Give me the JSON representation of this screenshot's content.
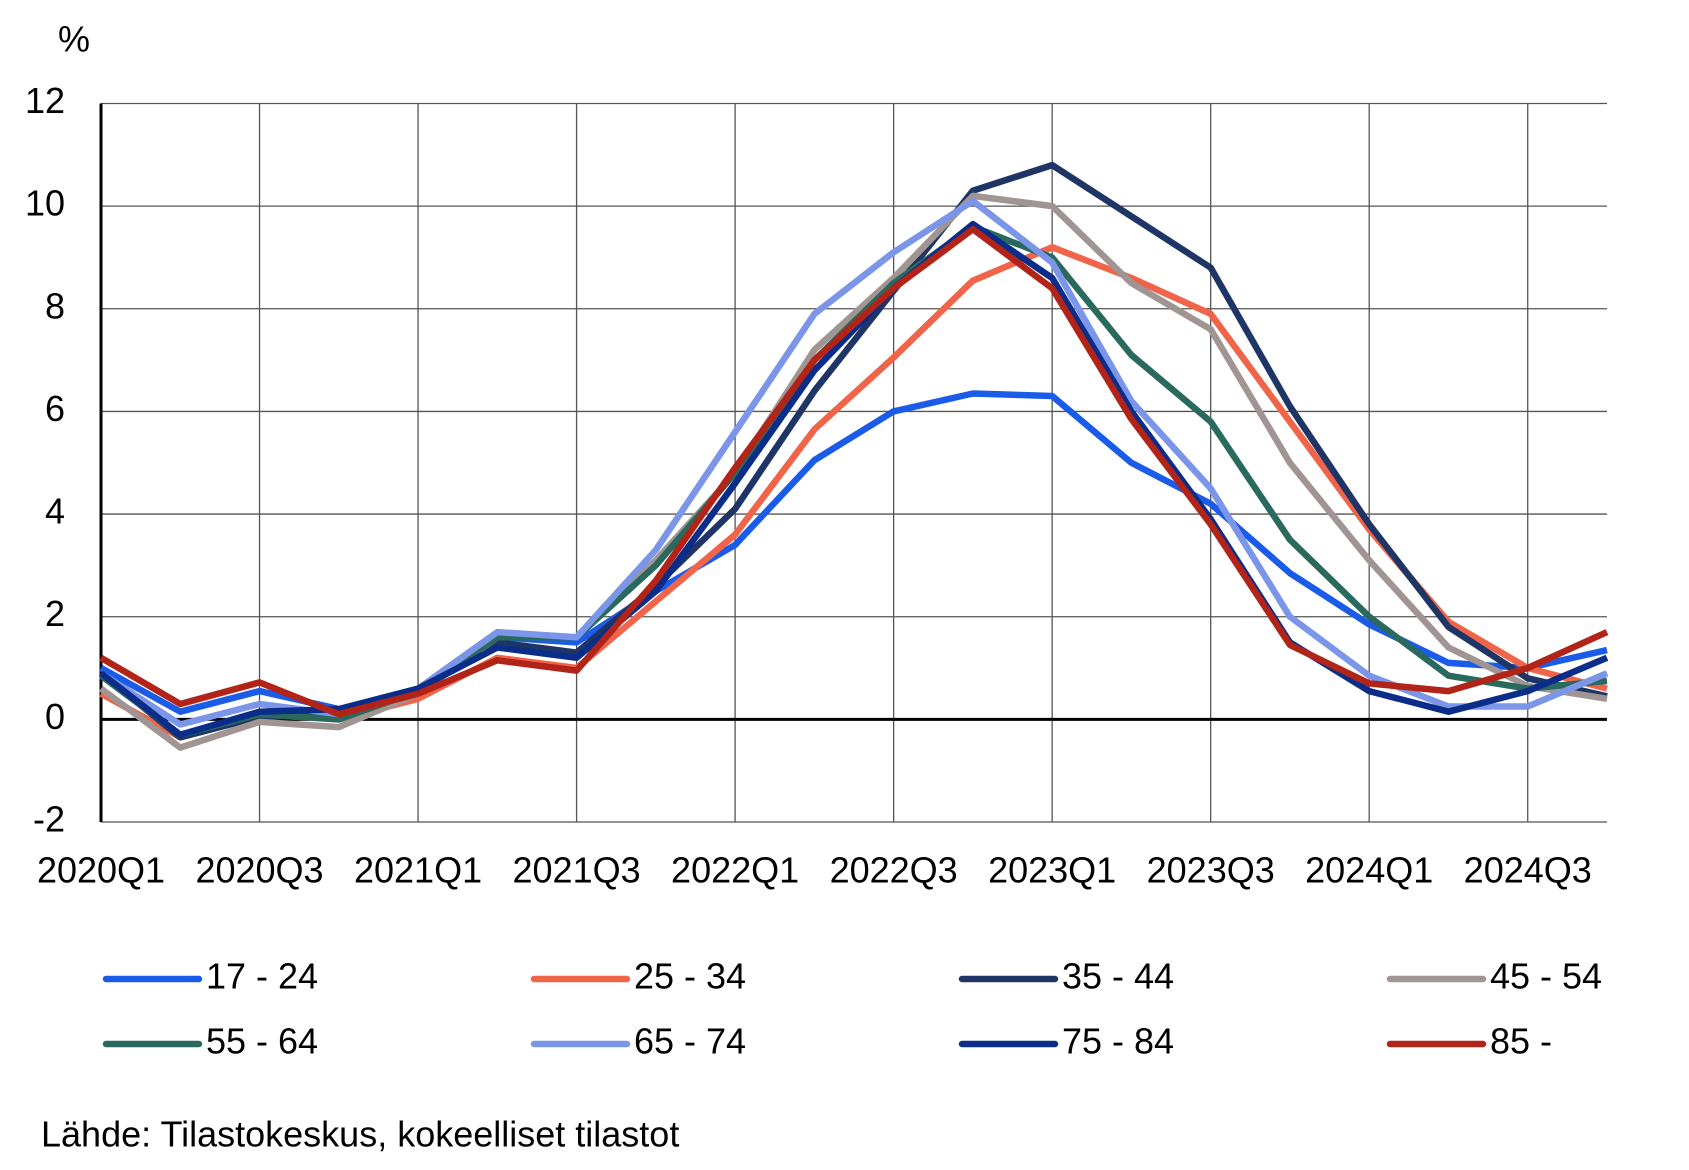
{
  "chart_data": {
    "type": "line",
    "y_unit": "%",
    "source": "Lähde: Tilastokeskus, kokeelliset tilastot",
    "categories": [
      "2020Q1",
      null,
      "2020Q3",
      null,
      "2021Q1",
      null,
      "2021Q3",
      null,
      "2022Q1",
      null,
      "2022Q3",
      null,
      "2023Q1",
      null,
      "2023Q3",
      null,
      "2024Q1",
      null,
      "2024Q3",
      null
    ],
    "series": [
      {
        "name": "17 - 24",
        "color": "#1a5ce8",
        "values": [
          1.0,
          0.15,
          0.55,
          0.2,
          0.6,
          1.6,
          1.5,
          2.5,
          3.4,
          5.05,
          6.0,
          6.35,
          6.3,
          5.0,
          4.2,
          2.85,
          1.85,
          1.1,
          1.0,
          1.35
        ]
      },
      {
        "name": "25 - 34",
        "color": "#f0654a",
        "values": [
          0.5,
          -0.35,
          0.1,
          0.0,
          0.4,
          1.2,
          1.0,
          2.3,
          3.6,
          5.65,
          7.05,
          8.55,
          9.2,
          8.6,
          7.9,
          5.8,
          3.7,
          1.9,
          1.0,
          0.6
        ]
      },
      {
        "name": "35 - 44",
        "color": "#1f3566",
        "values": [
          0.9,
          -0.35,
          0.05,
          0.1,
          0.6,
          1.5,
          1.3,
          2.6,
          4.1,
          6.4,
          8.35,
          10.3,
          10.8,
          9.8,
          8.8,
          6.1,
          3.8,
          1.8,
          0.8,
          0.45
        ]
      },
      {
        "name": "45 - 54",
        "color": "#a09592",
        "values": [
          0.6,
          -0.55,
          -0.05,
          -0.15,
          0.5,
          1.6,
          1.6,
          3.1,
          4.8,
          7.2,
          8.6,
          10.2,
          10.0,
          8.5,
          7.6,
          5.0,
          3.1,
          1.4,
          0.65,
          0.4
        ]
      },
      {
        "name": "55 - 64",
        "color": "#2a6a5e",
        "values": [
          0.85,
          -0.3,
          0.1,
          0.0,
          0.55,
          1.6,
          1.6,
          3.0,
          4.8,
          7.0,
          8.5,
          9.6,
          9.0,
          7.1,
          5.8,
          3.5,
          2.0,
          0.85,
          0.6,
          0.75
        ]
      },
      {
        "name": "65 - 74",
        "color": "#7b96e8",
        "values": [
          0.9,
          -0.1,
          0.3,
          0.1,
          0.6,
          1.7,
          1.6,
          3.3,
          5.6,
          7.9,
          9.1,
          10.1,
          8.9,
          6.2,
          4.5,
          2.0,
          0.85,
          0.25,
          0.25,
          0.9
        ]
      },
      {
        "name": "75 - 84",
        "color": "#0b2d8a",
        "values": [
          0.9,
          -0.3,
          0.15,
          0.2,
          0.6,
          1.4,
          1.2,
          2.5,
          4.6,
          6.8,
          8.4,
          9.65,
          8.6,
          6.0,
          3.9,
          1.5,
          0.55,
          0.15,
          0.55,
          1.2
        ]
      },
      {
        "name": "85 -",
        "color": "#b22318",
        "values": [
          1.2,
          0.3,
          0.72,
          0.1,
          0.5,
          1.15,
          0.95,
          2.7,
          4.9,
          7.0,
          8.4,
          9.55,
          8.4,
          5.85,
          3.8,
          1.45,
          0.7,
          0.55,
          1.0,
          1.7
        ]
      }
    ],
    "ylim": [
      -2,
      12
    ],
    "yticks": [
      -2,
      0,
      2,
      4,
      6,
      8,
      10,
      12
    ],
    "grid": true,
    "legend": "bottom"
  }
}
